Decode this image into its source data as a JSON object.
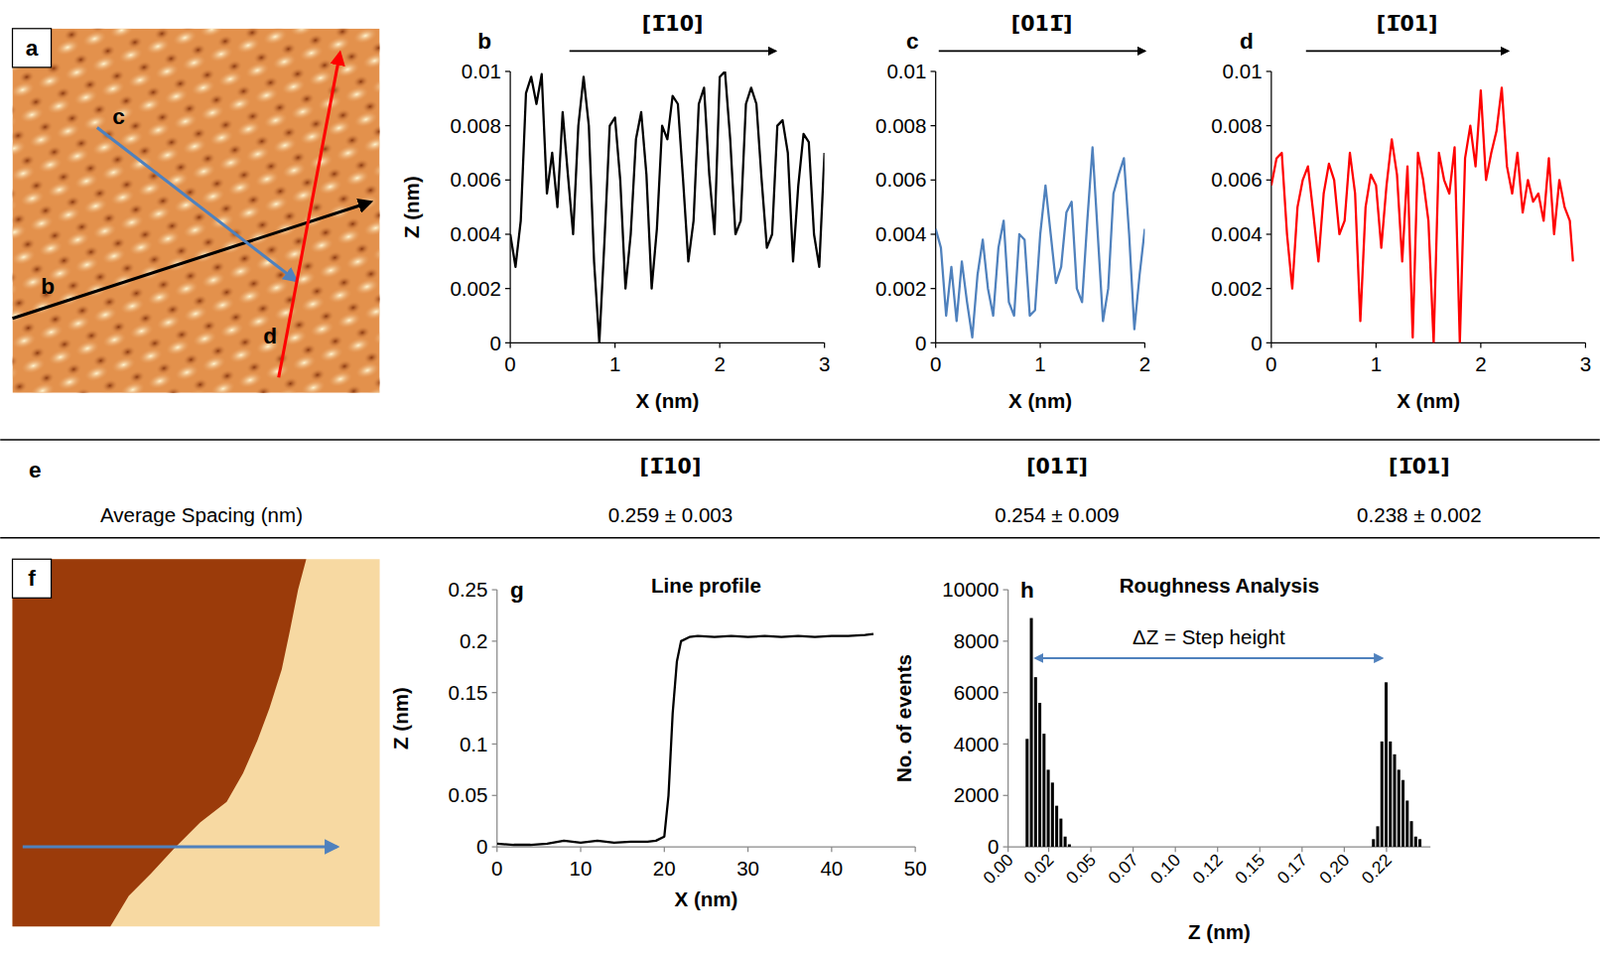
{
  "chart_data": [
    {
      "type": "line",
      "panel": "b",
      "title": "[1̅10]",
      "x": [
        0,
        0.05,
        0.1,
        0.15,
        0.2,
        0.25,
        0.3,
        0.35,
        0.4,
        0.45,
        0.5,
        0.55,
        0.6,
        0.65,
        0.7,
        0.75,
        0.8,
        0.85,
        0.9,
        0.95,
        1,
        1.05,
        1.1,
        1.15,
        1.2,
        1.25,
        1.3,
        1.35,
        1.4,
        1.45,
        1.5,
        1.55,
        1.6,
        1.65,
        1.7,
        1.75,
        1.8,
        1.85,
        1.9,
        1.95,
        2,
        2.05,
        2.1,
        2.15,
        2.2,
        2.25,
        2.3,
        2.35,
        2.4,
        2.45,
        2.5,
        2.55,
        2.6,
        2.65,
        2.7,
        2.75,
        2.8,
        2.85,
        2.9,
        2.95,
        3
      ],
      "series": [
        {
          "color": "#000000",
          "values": [
            0.004,
            0.0028,
            0.0045,
            0.0092,
            0.0098,
            0.0088,
            0.0099,
            0.0055,
            0.007,
            0.005,
            0.0085,
            0.0062,
            0.004,
            0.008,
            0.0098,
            0.008,
            0.003,
            0,
            0.0038,
            0.008,
            0.0083,
            0.006,
            0.002,
            0.004,
            0.0075,
            0.0085,
            0.0062,
            0.002,
            0.0042,
            0.008,
            0.0075,
            0.0091,
            0.0088,
            0.006,
            0.003,
            0.0045,
            0.0088,
            0.0094,
            0.0062,
            0.004,
            0.0098,
            0.01,
            0.0075,
            0.004,
            0.0045,
            0.0088,
            0.0094,
            0.0088,
            0.006,
            0.0035,
            0.004,
            0.008,
            0.0082,
            0.007,
            0.003,
            0.0058,
            0.0077,
            0.0074,
            0.004,
            0.0028,
            0.007
          ]
        }
      ],
      "xlim": [
        0,
        3
      ],
      "ylim": [
        0,
        0.01
      ],
      "xticks": [
        0,
        1,
        2,
        3
      ],
      "yticks": [
        0,
        0.002,
        0.004,
        0.006,
        0.008,
        0.01
      ],
      "x_label": "X (nm)",
      "y_label": "Z (nm)"
    },
    {
      "type": "line",
      "panel": "c",
      "title": "[011̅]",
      "x": [
        0,
        0.05,
        0.1,
        0.15,
        0.2,
        0.25,
        0.3,
        0.35,
        0.4,
        0.45,
        0.5,
        0.55,
        0.6,
        0.65,
        0.7,
        0.75,
        0.8,
        0.85,
        0.9,
        0.95,
        1,
        1.05,
        1.1,
        1.15,
        1.2,
        1.25,
        1.3,
        1.35,
        1.4,
        1.45,
        1.5,
        1.55,
        1.6,
        1.65,
        1.7,
        1.75,
        1.8,
        1.85,
        1.9,
        1.95,
        2
      ],
      "series": [
        {
          "color": "#4f81bd",
          "values": [
            0.0042,
            0.0035,
            0.001,
            0.0028,
            0.0008,
            0.003,
            0.0015,
            0.0002,
            0.0025,
            0.0038,
            0.002,
            0.001,
            0.0035,
            0.0045,
            0.0015,
            0.001,
            0.004,
            0.0038,
            0.001,
            0.0012,
            0.004,
            0.0058,
            0.004,
            0.0022,
            0.0028,
            0.0048,
            0.0052,
            0.002,
            0.0015,
            0.0045,
            0.0072,
            0.004,
            0.0008,
            0.002,
            0.0055,
            0.0062,
            0.0068,
            0.004,
            0.0005,
            0.0025,
            0.0042
          ]
        }
      ],
      "xlim": [
        0,
        2
      ],
      "ylim": [
        0,
        0.01
      ],
      "xticks": [
        0,
        1,
        2
      ],
      "yticks": [
        0,
        0.002,
        0.004,
        0.006,
        0.008,
        0.01
      ],
      "x_label": "X (nm)"
    },
    {
      "type": "line",
      "panel": "d",
      "title": "[1̅01]",
      "x": [
        0,
        0.05,
        0.1,
        0.15,
        0.2,
        0.25,
        0.3,
        0.35,
        0.4,
        0.45,
        0.5,
        0.55,
        0.6,
        0.65,
        0.7,
        0.75,
        0.8,
        0.85,
        0.9,
        0.95,
        1,
        1.05,
        1.1,
        1.15,
        1.2,
        1.25,
        1.3,
        1.35,
        1.4,
        1.45,
        1.5,
        1.55,
        1.6,
        1.65,
        1.7,
        1.75,
        1.8,
        1.85,
        1.9,
        1.95,
        2,
        2.05,
        2.1,
        2.15,
        2.2,
        2.25,
        2.3,
        2.35,
        2.4,
        2.45,
        2.5,
        2.55,
        2.6,
        2.65,
        2.7,
        2.75,
        2.8,
        2.85,
        2.88
      ],
      "series": [
        {
          "color": "#ff0000",
          "values": [
            0.0058,
            0.0068,
            0.007,
            0.004,
            0.002,
            0.005,
            0.006,
            0.0065,
            0.0048,
            0.003,
            0.0055,
            0.0066,
            0.006,
            0.004,
            0.0045,
            0.007,
            0.0055,
            0.0008,
            0.005,
            0.0062,
            0.0058,
            0.0035,
            0.0058,
            0.0075,
            0.0062,
            0.003,
            0.0065,
            0.0002,
            0.007,
            0.006,
            0.0045,
            0,
            0.007,
            0.006,
            0.0055,
            0.0072,
            0,
            0.0068,
            0.008,
            0.0065,
            0.0093,
            0.006,
            0.007,
            0.0078,
            0.0094,
            0.0065,
            0.0055,
            0.007,
            0.0048,
            0.006,
            0.0052,
            0.0055,
            0.0045,
            0.0068,
            0.004,
            0.006,
            0.005,
            0.0045,
            0.003
          ]
        }
      ],
      "xlim": [
        0,
        3
      ],
      "ylim": [
        0,
        0.01
      ],
      "xticks": [
        0,
        1,
        2,
        3
      ],
      "yticks": [
        0,
        0.002,
        0.004,
        0.006,
        0.008,
        0.01
      ],
      "x_label": "X (nm)"
    },
    {
      "type": "line",
      "panel": "g",
      "title": "Line profile",
      "x": [
        0,
        2,
        4,
        6,
        8,
        10,
        12,
        14,
        16,
        18,
        19,
        20,
        20.5,
        21,
        21.5,
        22,
        23,
        24,
        26,
        28,
        30,
        32,
        34,
        36,
        38,
        40,
        42,
        44,
        45
      ],
      "series": [
        {
          "color": "#000000",
          "values": [
            0.003,
            0.002,
            0.002,
            0.003,
            0.006,
            0.004,
            0.006,
            0.004,
            0.005,
            0.005,
            0.006,
            0.01,
            0.05,
            0.13,
            0.18,
            0.2,
            0.204,
            0.205,
            0.204,
            0.205,
            0.204,
            0.205,
            0.204,
            0.205,
            0.204,
            0.205,
            0.205,
            0.206,
            0.207
          ]
        }
      ],
      "xlim": [
        0,
        50
      ],
      "ylim": [
        0,
        0.25
      ],
      "xticks": [
        0,
        10,
        20,
        30,
        40,
        50
      ],
      "yticks": [
        0,
        0.05,
        0.1,
        0.15,
        0.2,
        0.25
      ],
      "x_label": "X (nm)",
      "y_label": "Z (nm)"
    },
    {
      "type": "histogram",
      "panel": "h",
      "title": "Roughness Analysis",
      "color": "#000000",
      "bins": [
        0,
        0.0025,
        0.005,
        0.0075,
        0.01,
        0.0125,
        0.015,
        0.0175,
        0.02,
        0.0225,
        0.025,
        0.0275,
        0.03,
        0.0325,
        0.035,
        0.0375,
        0.04,
        0.0425,
        0.045,
        0.0475,
        0.05,
        0.0525,
        0.055,
        0.0575,
        0.06,
        0.0625,
        0.065,
        0.0675,
        0.07,
        0.0725,
        0.075,
        0.0775,
        0.08,
        0.0825,
        0.085,
        0.0875,
        0.09,
        0.0925,
        0.095,
        0.0975,
        0.1,
        0.1025,
        0.105,
        0.1075,
        0.11,
        0.1125,
        0.115,
        0.1175,
        0.12,
        0.1225,
        0.125,
        0.1275,
        0.13,
        0.1325,
        0.135,
        0.1375,
        0.14,
        0.1425,
        0.145,
        0.1475,
        0.15,
        0.1525,
        0.155,
        0.1575,
        0.16,
        0.1625,
        0.165,
        0.1675,
        0.17,
        0.1725,
        0.175,
        0.1775,
        0.18,
        0.1825,
        0.185,
        0.1875,
        0.19,
        0.1925,
        0.195,
        0.1975,
        0.2,
        0.2025,
        0.205,
        0.2075,
        0.21,
        0.2125,
        0.215,
        0.2175,
        0.22,
        0.2225,
        0.225,
        0.2275,
        0.23,
        0.2325,
        0.235,
        0.2375,
        0.24,
        0.2425,
        0.245,
        0.2475,
        0.25
      ],
      "values": [
        0,
        0,
        0,
        0,
        4200,
        8900,
        6600,
        5600,
        4400,
        3000,
        2500,
        1600,
        1100,
        400,
        100,
        0,
        0,
        0,
        0,
        0,
        0,
        0,
        0,
        0,
        0,
        0,
        0,
        0,
        0,
        0,
        0,
        0,
        0,
        0,
        0,
        0,
        0,
        0,
        0,
        0,
        0,
        0,
        0,
        0,
        0,
        0,
        0,
        0,
        0,
        0,
        0,
        0,
        0,
        0,
        0,
        0,
        0,
        0,
        0,
        0,
        0,
        0,
        0,
        0,
        0,
        0,
        0,
        0,
        0,
        0,
        0,
        0,
        0,
        0,
        0,
        0,
        0,
        0,
        0,
        0,
        0,
        0,
        0,
        0,
        0,
        0,
        300,
        800,
        4100,
        6400,
        4100,
        3600,
        3000,
        2600,
        1800,
        1000,
        400,
        300,
        0,
        0
      ],
      "xlim": [
        0,
        0.25
      ],
      "ylim": [
        0,
        10000
      ],
      "xticks": [
        {
          "value": 0,
          "label": "0.00"
        },
        {
          "value": 0.024,
          "label": "0.02"
        },
        {
          "value": 0.049,
          "label": "0.05"
        },
        {
          "value": 0.074,
          "label": "0.07"
        },
        {
          "value": 0.099,
          "label": "0.10"
        },
        {
          "value": 0.124,
          "label": "0.12"
        },
        {
          "value": 0.149,
          "label": "0.15"
        },
        {
          "value": 0.174,
          "label": "0.17"
        },
        {
          "value": 0.199,
          "label": "0.20"
        },
        {
          "value": 0.224,
          "label": "0.22"
        }
      ],
      "yticks": [
        0,
        2000,
        4000,
        6000,
        8000,
        10000
      ],
      "x_label": "Z (nm)",
      "y_label": "No. of events",
      "annotation": "ΔZ = Step height"
    }
  ],
  "images": [
    {
      "panel": "a",
      "arrows": [
        {
          "label": "b",
          "color": "#000000"
        },
        {
          "label": "c",
          "color": "#4f81bd"
        },
        {
          "label": "d",
          "color": "#ff0000"
        }
      ]
    },
    {
      "panel": "f",
      "arrow_color": "#4f81bd"
    }
  ],
  "table": {
    "panel": "e",
    "row_label": "Average Spacing (nm)",
    "columns": [
      "[1̅10]",
      "[011̅]",
      "[1̅01]"
    ],
    "values": [
      "0.259 ± 0.003",
      "0.254 ± 0.009",
      "0.238 ± 0.002"
    ]
  }
}
